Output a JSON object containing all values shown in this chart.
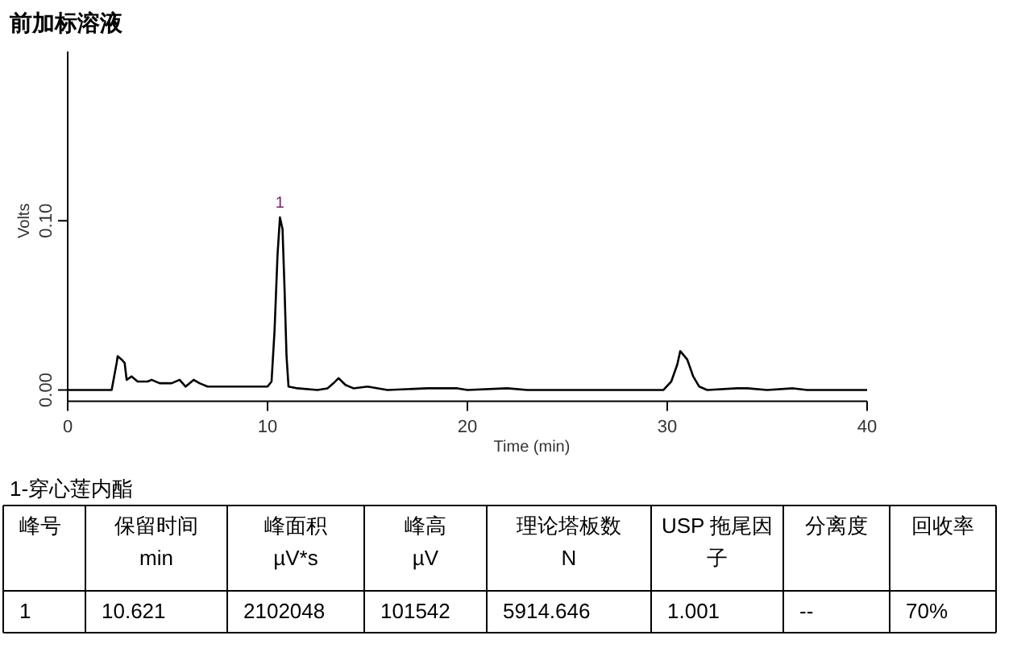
{
  "chart_data": {
    "type": "line",
    "title": "前加标溶液",
    "xlabel": "Time (min)",
    "ylabel": "Volts",
    "xlim": [
      0,
      40
    ],
    "ylim": [
      -0.0067,
      0.2
    ],
    "xticks": [
      0,
      10,
      20,
      30,
      40
    ],
    "yticks": [
      {
        "value": 0,
        "label": "0.00"
      },
      {
        "value": 0.1,
        "label": "0.10"
      }
    ],
    "grid": false,
    "marker": "none",
    "line_style": "solid",
    "series": [
      {
        "color": "#000000",
        "x": [
          0,
          2.2,
          2.45,
          2.5,
          2.7,
          2.85,
          2.95,
          3.2,
          3.5,
          4.0,
          4.2,
          4.6,
          5.2,
          5.6,
          5.9,
          6.3,
          6.6,
          7,
          8,
          9,
          10,
          10.2,
          10.35,
          10.5,
          10.62,
          10.75,
          10.85,
          10.95,
          11.05,
          11.5,
          12.5,
          13,
          13.3,
          13.55,
          13.9,
          14.3,
          15,
          16,
          18,
          19.5,
          20,
          22,
          23,
          29.8,
          30.2,
          30.5,
          30.65,
          31.0,
          31.3,
          31.6,
          32,
          33.5,
          34,
          35,
          36.3,
          37,
          40
        ],
        "values": [
          0,
          0,
          0.016,
          0.02,
          0.018,
          0.016,
          0.006,
          0.008,
          0.005,
          0.005,
          0.006,
          0.004,
          0.004,
          0.006,
          0.002,
          0.006,
          0.004,
          0.002,
          0.002,
          0.002,
          0.002,
          0.005,
          0.035,
          0.08,
          0.102,
          0.095,
          0.06,
          0.02,
          0.002,
          0.001,
          0,
          0.001,
          0.004,
          0.007,
          0.003,
          0.001,
          0.002,
          0,
          0.001,
          0.001,
          0,
          0.001,
          0,
          0,
          0.005,
          0.015,
          0.023,
          0.018,
          0.008,
          0.002,
          0,
          0.001,
          0.001,
          0,
          0.001,
          0,
          0
        ]
      }
    ],
    "annotations": [
      {
        "text": "1",
        "x": 10.621,
        "y": 0.102
      },
      "1-穿心莲内酯",
      "峰号",
      "保留时间\nmin",
      "峰面积\nµV*s",
      "峰高\nµV",
      "理论塔板数\nN",
      "USP 拖尾因子",
      "分离度",
      "回收率",
      "1",
      "10.621",
      "2102048",
      "101542",
      "5914.646",
      "1.001",
      "--",
      "70%"
    ]
  }
}
